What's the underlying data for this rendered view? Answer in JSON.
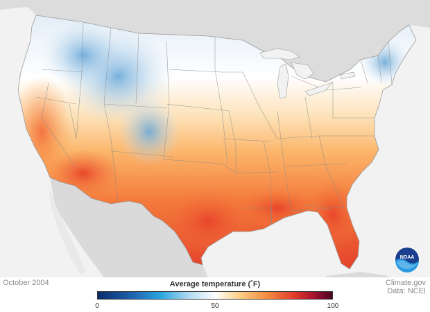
{
  "map": {
    "region": "Contiguous United States",
    "variable": "Average temperature",
    "colors": {
      "background": "#f2f2f2",
      "neighbor_land": "#dadada",
      "cold": "#3a8fc9",
      "mild": "#ffffff",
      "warm": "#f9a14c",
      "hot": "#e8422c",
      "very_hot": "#5a0a2c"
    }
  },
  "footer": {
    "date": "October 2004",
    "legend_title": "Average temperature (˚F)",
    "legend_ticks": [
      {
        "value": "0",
        "pos": 0
      },
      {
        "value": "50",
        "pos": 0.5
      },
      {
        "value": "100",
        "pos": 1
      }
    ],
    "credit_line1": "Climate.gov",
    "credit_line2": "Data: NCEI"
  },
  "logo": {
    "icon": "noaa-logo-icon",
    "text": "NOAA"
  }
}
